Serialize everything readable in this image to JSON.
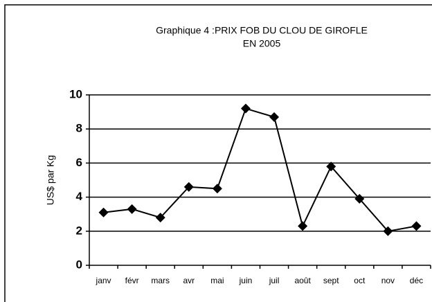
{
  "chart_data": {
    "type": "line",
    "title": [
      "Graphique 4 :PRIX  FOB DU CLOU DE GIROFLE",
      "EN 2005"
    ],
    "y_label": "US$ par Kg",
    "categories": [
      "janv",
      "févr",
      "mars",
      "avr",
      "mai",
      "juin",
      "juil",
      "août",
      "sept",
      "oct",
      "nov",
      "déc"
    ],
    "values": [
      3.1,
      3.3,
      2.8,
      4.6,
      4.5,
      9.2,
      8.7,
      2.3,
      5.8,
      3.9,
      2.0,
      2.3
    ],
    "color": "#000000",
    "ylim": [
      0,
      10
    ],
    "yticks": [
      0,
      2,
      4,
      6,
      8,
      10
    ],
    "grid": true
  }
}
